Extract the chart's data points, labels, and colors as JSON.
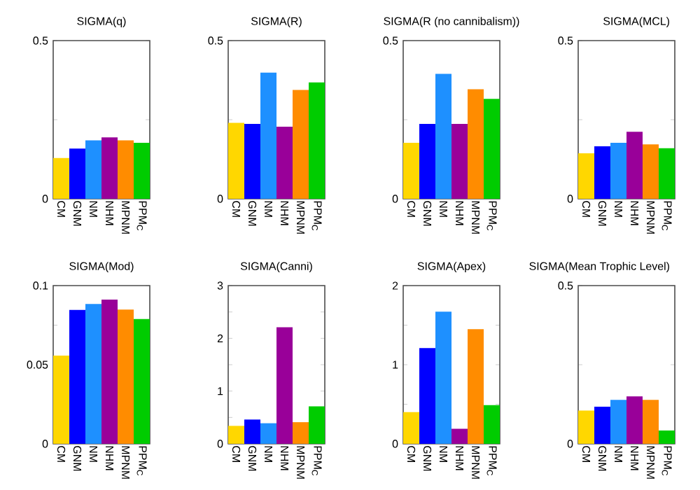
{
  "chart_data": [
    {
      "type": "bar",
      "title": "SIGMA(q)",
      "categories": [
        "CM",
        "GNM",
        "NM",
        "NHM",
        "MPNM",
        "PPM$_{C}$"
      ],
      "values": [
        0.129,
        0.159,
        0.185,
        0.194,
        0.185,
        0.177
      ],
      "colors": [
        "#ffd700",
        "#0000ff",
        "#1e90ff",
        "#990099",
        "#ff8c00",
        "#00cc00"
      ],
      "ylim": [
        0,
        0.5
      ],
      "yticks": [
        0,
        {
          "value": 0.25,
          "label": null
        },
        0.5
      ],
      "grid": false
    },
    {
      "type": "bar",
      "title": "SIGMA(R)",
      "categories": [
        "CM",
        "GNM",
        "NM",
        "NHM",
        "MPNM",
        "PPM$_{C}$"
      ],
      "values": [
        0.24,
        0.237,
        0.399,
        0.228,
        0.344,
        0.368
      ],
      "colors": [
        "#ffd700",
        "#0000ff",
        "#1e90ff",
        "#990099",
        "#ff8c00",
        "#00cc00"
      ],
      "ylim": [
        0,
        0.5
      ],
      "yticks": [
        0,
        {
          "value": 0.25,
          "label": null
        },
        0.5
      ],
      "grid": false
    },
    {
      "type": "bar",
      "title": "SIGMA(R (no cannibalism))",
      "categories": [
        "CM",
        "GNM",
        "NM",
        "NHM",
        "MPNM",
        "PPM$_{C}$"
      ],
      "values": [
        0.177,
        0.237,
        0.395,
        0.237,
        0.346,
        0.316
      ],
      "colors": [
        "#ffd700",
        "#0000ff",
        "#1e90ff",
        "#990099",
        "#ff8c00",
        "#00cc00"
      ],
      "ylim": [
        0,
        0.5
      ],
      "yticks": [
        0,
        {
          "value": 0.25,
          "label": null
        },
        0.5
      ],
      "grid": false
    },
    {
      "type": "bar",
      "title": "SIGMA(MCL)",
      "categories": [
        "CM",
        "GNM",
        "NM",
        "NHM",
        "MPNM",
        "PPM$_{C}$"
      ],
      "values": [
        0.144,
        0.166,
        0.177,
        0.212,
        0.172,
        0.16
      ],
      "colors": [
        "#ffd700",
        "#0000ff",
        "#1e90ff",
        "#990099",
        "#ff8c00",
        "#00cc00"
      ],
      "ylim": [
        0,
        0.5
      ],
      "yticks": [
        0,
        {
          "value": 0.25,
          "label": null
        },
        0.5
      ],
      "grid": false
    },
    {
      "type": "bar",
      "title": "SIGMA(Mod)",
      "categories": [
        "CM",
        "GNM",
        "NM",
        "NHM",
        "MPNM",
        "PPM$_{C}$"
      ],
      "values": [
        0.0558,
        0.0846,
        0.0884,
        0.0911,
        0.0849,
        0.0789
      ],
      "colors": [
        "#ffd700",
        "#0000ff",
        "#1e90ff",
        "#990099",
        "#ff8c00",
        "#00cc00"
      ],
      "ylim": [
        0,
        0.1
      ],
      "yticks": [
        0,
        {
          "value": 0.025,
          "label": null
        },
        0.05,
        {
          "value": 0.075,
          "label": null
        },
        0.1
      ],
      "grid": false
    },
    {
      "type": "bar",
      "title": "SIGMA(Canni)",
      "categories": [
        "CM",
        "GNM",
        "NM",
        "NHM",
        "MPNM",
        "PPM$_{C}$"
      ],
      "values": [
        0.34,
        0.46,
        0.39,
        2.21,
        0.41,
        0.71
      ],
      "colors": [
        "#ffd700",
        "#0000ff",
        "#1e90ff",
        "#990099",
        "#ff8c00",
        "#00cc00"
      ],
      "ylim": [
        0,
        3
      ],
      "yticks": [
        0,
        {
          "value": 0.5,
          "label": null
        },
        1,
        {
          "value": 1.5,
          "label": null
        },
        2,
        {
          "value": 2.5,
          "label": null
        },
        3
      ],
      "grid": false
    },
    {
      "type": "bar",
      "title": "SIGMA(Apex)",
      "categories": [
        "CM",
        "GNM",
        "NM",
        "NHM",
        "MPNM",
        "PPM$_{C}$"
      ],
      "values": [
        0.4,
        1.21,
        1.67,
        0.19,
        1.45,
        0.49
      ],
      "colors": [
        "#ffd700",
        "#0000ff",
        "#1e90ff",
        "#990099",
        "#ff8c00",
        "#00cc00"
      ],
      "ylim": [
        0,
        2
      ],
      "yticks": [
        0,
        {
          "value": 0.5,
          "label": null
        },
        1,
        {
          "value": 1.5,
          "label": null
        },
        2
      ],
      "grid": false
    },
    {
      "type": "bar",
      "title": "SIGMA(Mean Trophic Level)",
      "categories": [
        "CM",
        "GNM",
        "NM",
        "NHM",
        "MPNM",
        "PPM$_{C}$"
      ],
      "values": [
        0.105,
        0.117,
        0.139,
        0.15,
        0.139,
        0.042
      ],
      "colors": [
        "#ffd700",
        "#0000ff",
        "#1e90ff",
        "#990099",
        "#ff8c00",
        "#00cc00"
      ],
      "ylim": [
        0,
        0.5
      ],
      "yticks": [
        0,
        {
          "value": 0.25,
          "label": null
        },
        0.5
      ],
      "grid": false
    }
  ]
}
